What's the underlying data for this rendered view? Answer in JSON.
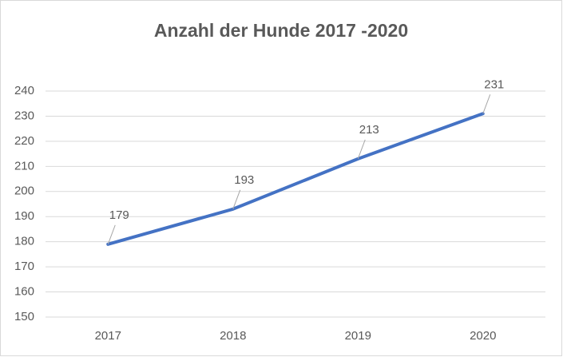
{
  "chart_data": {
    "type": "line",
    "title": "Anzahl der Hunde 2017 -2020",
    "categories": [
      "2017",
      "2018",
      "2019",
      "2020"
    ],
    "values": [
      179,
      193,
      213,
      231
    ],
    "color": "#4472c4",
    "ylim": [
      150,
      240
    ],
    "yticks": [
      150,
      160,
      170,
      180,
      190,
      200,
      210,
      220,
      230,
      240
    ],
    "grid": true
  }
}
